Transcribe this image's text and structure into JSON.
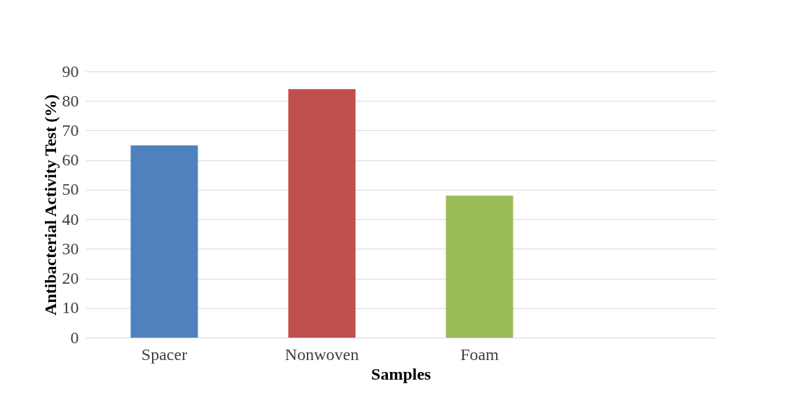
{
  "chart_data": {
    "type": "bar",
    "xlabel": "Samples",
    "ylabel": "Antibacterial Activity Test (%)",
    "categories": [
      "Spacer",
      "Nonwoven",
      "Foam",
      null
    ],
    "values": [
      65,
      84,
      48,
      null
    ],
    "colors": [
      "#4f81bd",
      "#c0504d",
      "#9bbb59",
      "#9bbb59"
    ],
    "ylim": [
      0,
      90
    ],
    "yticks": [
      0,
      10,
      20,
      30,
      40,
      50,
      60,
      70,
      80,
      90
    ],
    "grid": "y"
  }
}
